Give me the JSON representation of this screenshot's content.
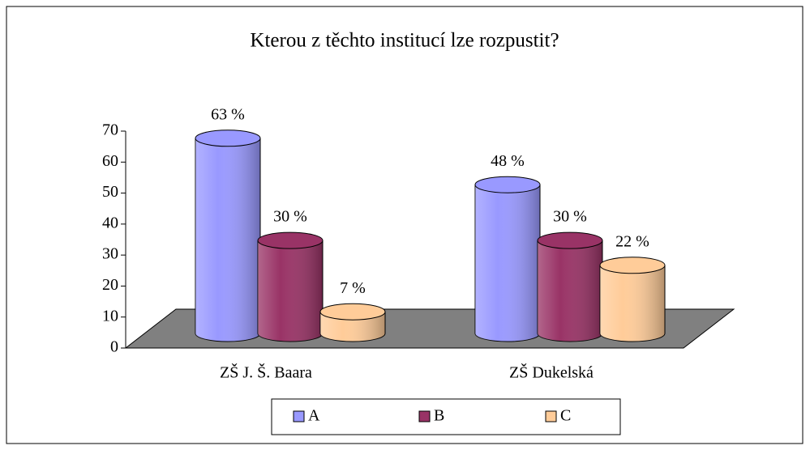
{
  "chart_data": {
    "type": "bar3d",
    "title": "Kterou z těchto institucí lze rozpustit?",
    "categories": [
      "ZŠ J. Š. Baara",
      "ZŠ Dukelská"
    ],
    "series": [
      {
        "name": "A",
        "color": "#9999ff",
        "values": [
          63,
          48
        ],
        "value_labels": [
          "63 %",
          "48 %"
        ]
      },
      {
        "name": "B",
        "color": "#993366",
        "values": [
          30,
          30
        ],
        "value_labels": [
          "30 %",
          "30 %"
        ]
      },
      {
        "name": "C",
        "color": "#ffcc99",
        "values": [
          7,
          22
        ],
        "value_labels": [
          "7 %",
          "22 %"
        ]
      }
    ],
    "ylim": [
      0,
      70
    ],
    "yticks": [
      0,
      10,
      20,
      30,
      40,
      50,
      60,
      70
    ],
    "legend": "bottom"
  }
}
